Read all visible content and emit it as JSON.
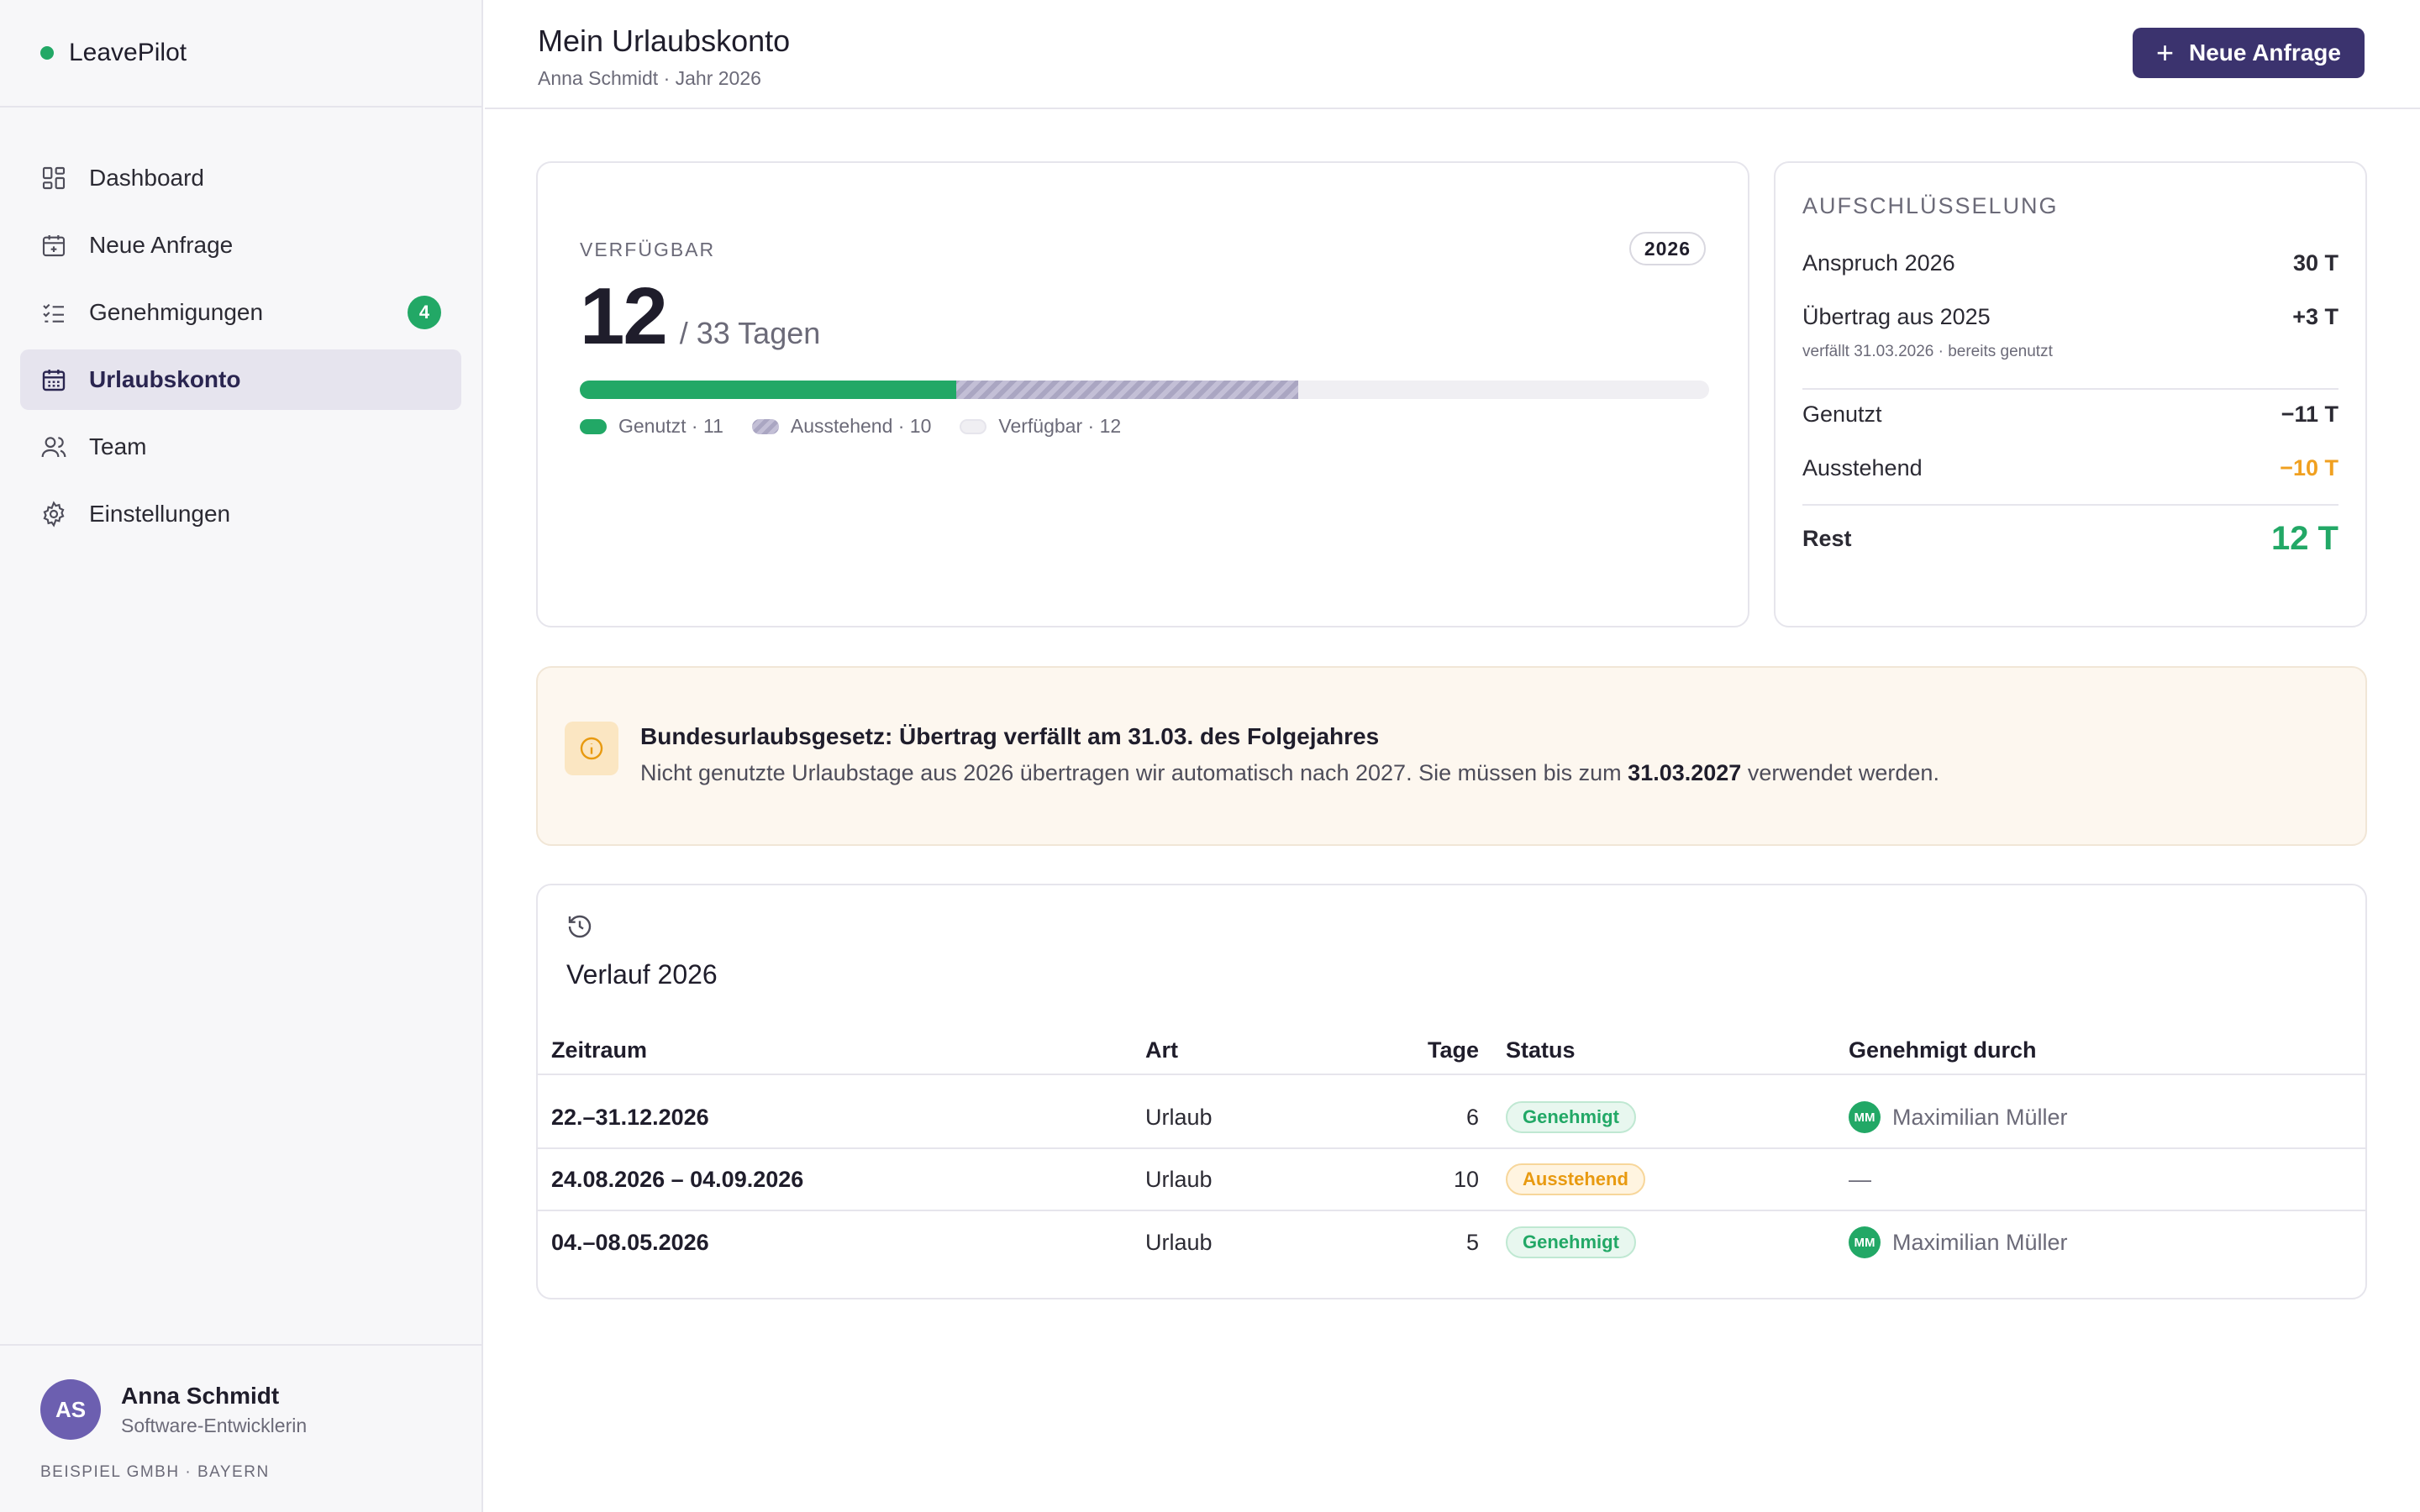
{
  "brand": {
    "name": "LeavePilot",
    "accent": "#22a866"
  },
  "nav": {
    "items": [
      {
        "label": "Dashboard",
        "icon": "dashboard-icon"
      },
      {
        "label": "Neue Anfrage",
        "icon": "calendar-plus-icon"
      },
      {
        "label": "Genehmigungen",
        "icon": "checklist-icon",
        "badge": "4"
      },
      {
        "label": "Urlaubskonto",
        "icon": "calendar-icon",
        "active": true
      },
      {
        "label": "Team",
        "icon": "users-icon"
      },
      {
        "label": "Einstellungen",
        "icon": "gear-icon"
      }
    ]
  },
  "user": {
    "initials": "AS",
    "name": "Anna Schmidt",
    "role": "Software-Entwicklerin",
    "company": "BEISPIEL GMBH · BAYERN"
  },
  "header": {
    "title": "Mein Urlaubskonto",
    "subtitle": "Anna Schmidt · Jahr 2026",
    "new_request_label": "Neue Anfrage"
  },
  "availability": {
    "label": "VERFÜGBAR",
    "year": "2026",
    "available": "12",
    "total_text": "/ 33 Tagen",
    "used_days": 11,
    "pending_days": 10,
    "free_days": 12,
    "total_days": 33,
    "legend": {
      "used": "Genutzt · 11",
      "pending": "Ausstehend · 10",
      "free": "Verfügbar · 12"
    }
  },
  "breakdown": {
    "title": "AUFSCHLÜSSELUNG",
    "entitlement_label": "Anspruch 2026",
    "entitlement_value": "30 T",
    "carryover_label": "Übertrag aus 2025",
    "carryover_value": "+3 T",
    "carryover_note": "verfällt 31.03.2026 · bereits genutzt",
    "used_label": "Genutzt",
    "used_value": "−11 T",
    "pending_label": "Ausstehend",
    "pending_value": "−10 T",
    "rest_label": "Rest",
    "rest_value": "12 T"
  },
  "notice": {
    "title": "Bundesurlaubsgesetz: Übertrag verfällt am 31.03. des Folgejahres",
    "text_before": "Nicht genutzte Urlaubstage aus 2026 übertragen wir automatisch nach 2027. Sie müssen bis zum ",
    "date": "31.03.2027",
    "text_after": " verwendet werden."
  },
  "history": {
    "title": "Verlauf 2026",
    "columns": [
      "Zeitraum",
      "Art",
      "Tage",
      "Status",
      "Genehmigt durch"
    ],
    "rows": [
      {
        "period": "22.–31.12.2026",
        "type": "Urlaub",
        "days": "6",
        "status": "Genehmigt",
        "status_kind": "ok",
        "approver_initials": "MM",
        "approver": "Maximilian Müller"
      },
      {
        "period": "24.08.2026 – 04.09.2026",
        "type": "Urlaub",
        "days": "10",
        "status": "Ausstehend",
        "status_kind": "pending",
        "approver_initials": "",
        "approver": "—"
      },
      {
        "period": "04.–08.05.2026",
        "type": "Urlaub",
        "days": "5",
        "status": "Genehmigt",
        "status_kind": "ok",
        "approver_initials": "MM",
        "approver": "Maximilian Müller"
      }
    ]
  }
}
